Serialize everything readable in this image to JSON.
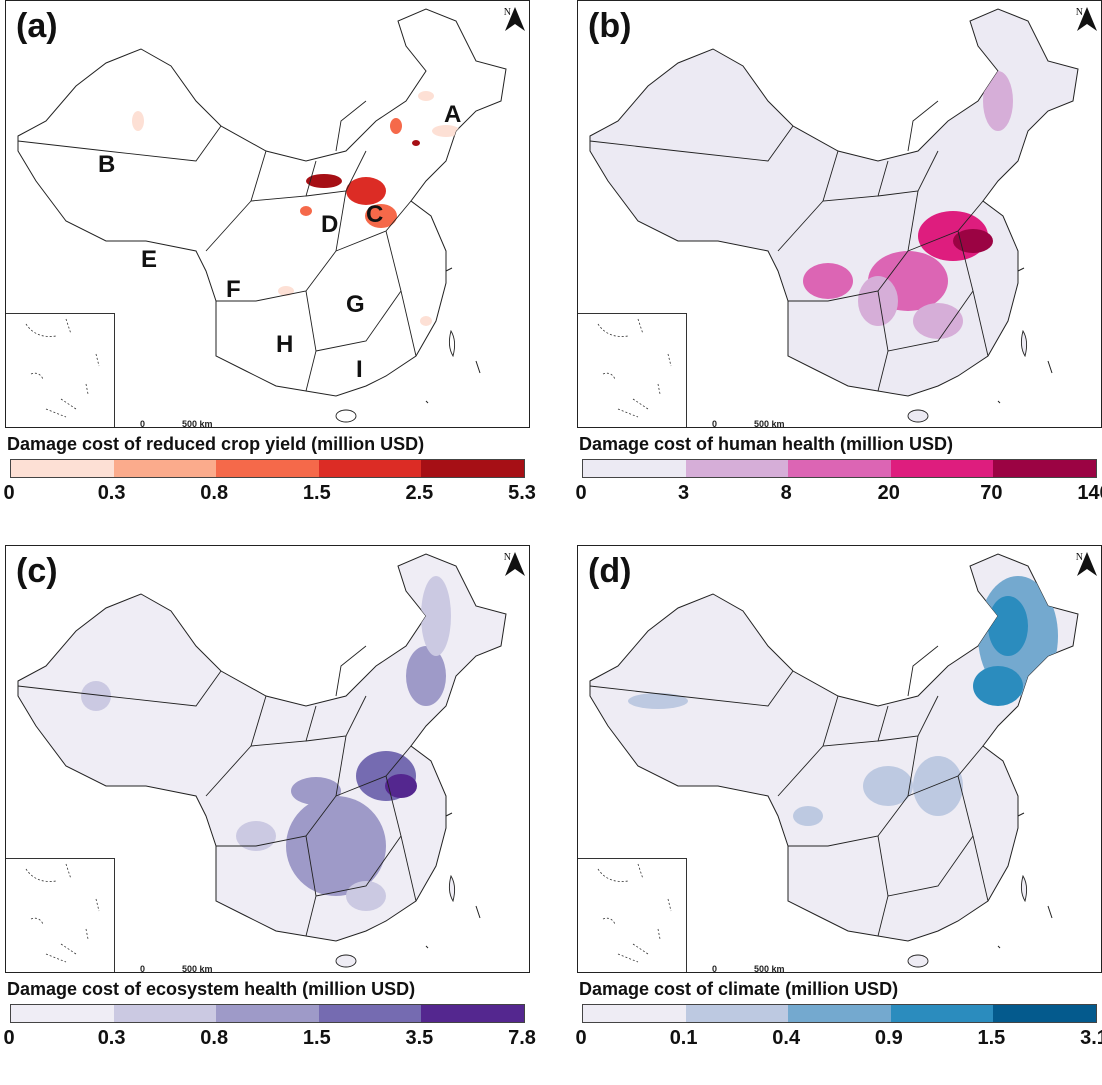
{
  "north_label": "N",
  "scale": {
    "zero": "0",
    "distance": "500 km"
  },
  "panels": [
    {
      "label": "(a)",
      "legend_title": "Damage cost of reduced crop yield (million USD)",
      "ticks": [
        "0",
        "0.3",
        "0.8",
        "1.5",
        "2.5",
        "5.3"
      ],
      "colors": [
        "#fde0d5",
        "#fbab8c",
        "#f5694a",
        "#dc2c25",
        "#a60f15"
      ],
      "base_fill": "#ffffff",
      "regions": [
        "A",
        "B",
        "C",
        "D",
        "E",
        "F",
        "G",
        "H",
        "I"
      ]
    },
    {
      "label": "(b)",
      "legend_title": "Damage cost of human health (million USD)",
      "ticks": [
        "0",
        "3",
        "8",
        "20",
        "70",
        "140"
      ],
      "colors": [
        "#eceaf3",
        "#d6aed8",
        "#dc65b4",
        "#de1d7e",
        "#9b0343"
      ],
      "base_fill": "#eceaf3"
    },
    {
      "label": "(c)",
      "legend_title": "Damage cost of ecosystem health (million USD)",
      "ticks": [
        "0",
        "0.3",
        "0.8",
        "1.5",
        "3.5",
        "7.8"
      ],
      "colors": [
        "#efedf5",
        "#cbc9e2",
        "#9e9ac8",
        "#756bb1",
        "#54278f"
      ],
      "base_fill": "#efedf5"
    },
    {
      "label": "(d)",
      "legend_title": "Damage cost of climate (million USD)",
      "ticks": [
        "0",
        "0.1",
        "0.4",
        "0.9",
        "1.5",
        "3.1"
      ],
      "colors": [
        "#eeecf4",
        "#bdc9e1",
        "#74a9cf",
        "#2b8cbe",
        "#045a8d"
      ],
      "base_fill": "#eeecf4"
    }
  ]
}
